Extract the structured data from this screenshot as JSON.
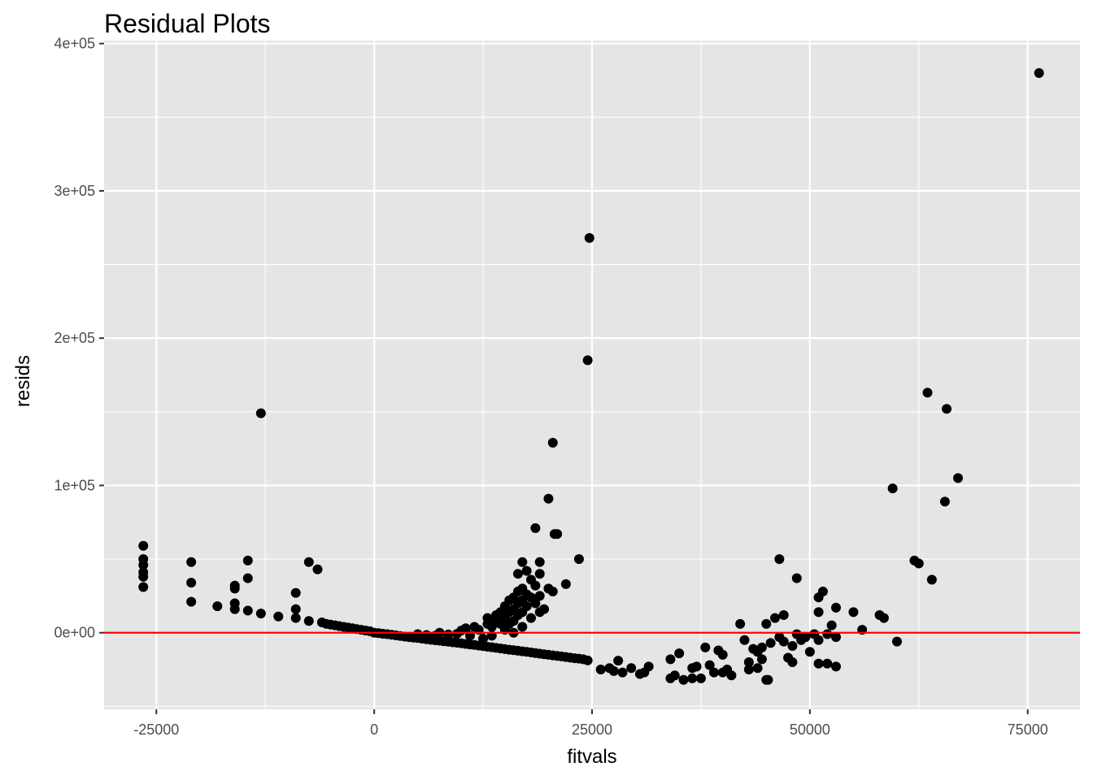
{
  "chart_data": {
    "type": "scatter",
    "title": "Residual Plots",
    "xlabel": "fitvals",
    "ylabel": "resids",
    "xlim": [
      -31000,
      81000
    ],
    "ylim": [
      -52000,
      402000
    ],
    "x_ticks": [
      -25000,
      0,
      25000,
      50000,
      75000
    ],
    "x_tick_labels": [
      "-25000",
      "0",
      "25000",
      "50000",
      "75000"
    ],
    "y_ticks": [
      0,
      100000,
      200000,
      300000,
      400000
    ],
    "y_tick_labels": [
      "0e+00",
      "1e+05",
      "2e+05",
      "3e+05",
      "4e+05"
    ],
    "reference_line": {
      "y": 0,
      "color": "#ff0000"
    },
    "grid": true,
    "legend": "none",
    "colors": {
      "panel": "#e5e5e5",
      "grid": "#ffffff",
      "point": "#000000",
      "ref_line": "#ff0000"
    },
    "points": [
      [
        -26500,
        59000
      ],
      [
        -26500,
        50000
      ],
      [
        -26500,
        46000
      ],
      [
        -26500,
        41000
      ],
      [
        -26500,
        38000
      ],
      [
        -26500,
        31000
      ],
      [
        -21000,
        48000
      ],
      [
        -21000,
        34000
      ],
      [
        -21000,
        21000
      ],
      [
        -18000,
        18000
      ],
      [
        -16000,
        32000
      ],
      [
        -16000,
        30000
      ],
      [
        -16000,
        20000
      ],
      [
        -16000,
        16000
      ],
      [
        -14500,
        49000
      ],
      [
        -14500,
        37000
      ],
      [
        -14500,
        15000
      ],
      [
        -13000,
        149000
      ],
      [
        -13000,
        13000
      ],
      [
        -11000,
        11000
      ],
      [
        -9000,
        27000
      ],
      [
        -9000,
        16000
      ],
      [
        -9000,
        10000
      ],
      [
        -7500,
        48000
      ],
      [
        -7500,
        8000
      ],
      [
        -6500,
        43000
      ],
      [
        -6000,
        7000
      ],
      [
        -5500,
        6000
      ],
      [
        -5000,
        5500
      ],
      [
        -4500,
        5000
      ],
      [
        -4000,
        4500
      ],
      [
        -3500,
        4000
      ],
      [
        -3000,
        3500
      ],
      [
        -2500,
        3000
      ],
      [
        -2000,
        2500
      ],
      [
        -1500,
        2000
      ],
      [
        -1000,
        1500
      ],
      [
        -500,
        1000
      ],
      [
        0,
        0
      ],
      [
        500,
        -300
      ],
      [
        1000,
        -700
      ],
      [
        1500,
        -1000
      ],
      [
        2000,
        -1400
      ],
      [
        2500,
        -1800
      ],
      [
        3000,
        -2200
      ],
      [
        3500,
        -2600
      ],
      [
        4000,
        -3000
      ],
      [
        4500,
        -3300
      ],
      [
        5000,
        -3600
      ],
      [
        5500,
        -4000
      ],
      [
        6000,
        -4400
      ],
      [
        6500,
        -4800
      ],
      [
        7000,
        -5100
      ],
      [
        7500,
        -5400
      ],
      [
        8000,
        -5800
      ],
      [
        8500,
        -6100
      ],
      [
        9000,
        -6500
      ],
      [
        9500,
        -6800
      ],
      [
        10000,
        -7200
      ],
      [
        10500,
        -7600
      ],
      [
        11000,
        -8000
      ],
      [
        11500,
        -8300
      ],
      [
        12000,
        -8700
      ],
      [
        12500,
        -9100
      ],
      [
        13000,
        -9500
      ],
      [
        13500,
        -9900
      ],
      [
        14000,
        -10300
      ],
      [
        14500,
        -10700
      ],
      [
        15000,
        -11100
      ],
      [
        15500,
        -11500
      ],
      [
        16000,
        -11900
      ],
      [
        16500,
        -12200
      ],
      [
        17000,
        -12600
      ],
      [
        17500,
        -13000
      ],
      [
        18000,
        -13400
      ],
      [
        18500,
        -13800
      ],
      [
        19000,
        -14200
      ],
      [
        19500,
        -14600
      ],
      [
        20000,
        -15000
      ],
      [
        20500,
        -15400
      ],
      [
        21000,
        -15700
      ],
      [
        21500,
        -16100
      ],
      [
        22000,
        -16500
      ],
      [
        22500,
        -16900
      ],
      [
        23000,
        -17300
      ],
      [
        23500,
        -17600
      ],
      [
        24000,
        -18000
      ],
      [
        24500,
        -18800
      ],
      [
        5000,
        -1000
      ],
      [
        6000,
        -1500
      ],
      [
        7000,
        -2000
      ],
      [
        7500,
        0
      ],
      [
        8500,
        -1200
      ],
      [
        9500,
        -800
      ],
      [
        10000,
        1500
      ],
      [
        10500,
        3000
      ],
      [
        11000,
        -2000
      ],
      [
        11500,
        4000
      ],
      [
        12000,
        2000
      ],
      [
        12500,
        -4000
      ],
      [
        13000,
        6000
      ],
      [
        13000,
        10000
      ],
      [
        13500,
        4000
      ],
      [
        13500,
        -2000
      ],
      [
        14000,
        12000
      ],
      [
        14000,
        8000
      ],
      [
        14500,
        14000
      ],
      [
        14500,
        6000
      ],
      [
        15000,
        18000
      ],
      [
        15000,
        10000
      ],
      [
        15000,
        2000
      ],
      [
        15500,
        22000
      ],
      [
        15500,
        14000
      ],
      [
        15500,
        6000
      ],
      [
        16000,
        24000
      ],
      [
        16000,
        16000
      ],
      [
        16000,
        8000
      ],
      [
        16000,
        0
      ],
      [
        16500,
        40000
      ],
      [
        16500,
        28000
      ],
      [
        16500,
        20000
      ],
      [
        16500,
        12000
      ],
      [
        17000,
        48000
      ],
      [
        17000,
        30000
      ],
      [
        17000,
        22000
      ],
      [
        17000,
        14000
      ],
      [
        17000,
        4000
      ],
      [
        17500,
        42000
      ],
      [
        17500,
        26000
      ],
      [
        17500,
        18000
      ],
      [
        18000,
        36000
      ],
      [
        18000,
        24000
      ],
      [
        18000,
        10000
      ],
      [
        18500,
        71000
      ],
      [
        18500,
        32000
      ],
      [
        18500,
        20000
      ],
      [
        19000,
        48000
      ],
      [
        19000,
        40000
      ],
      [
        19000,
        25000
      ],
      [
        19000,
        14000
      ],
      [
        19500,
        16000
      ],
      [
        20000,
        91000
      ],
      [
        20000,
        30000
      ],
      [
        20500,
        129000
      ],
      [
        20500,
        28000
      ],
      [
        20700,
        67000
      ],
      [
        21000,
        67000
      ],
      [
        22000,
        33000
      ],
      [
        23500,
        50000
      ],
      [
        24500,
        185000
      ],
      [
        24700,
        268000
      ],
      [
        26000,
        -25000
      ],
      [
        27000,
        -24000
      ],
      [
        27500,
        -26000
      ],
      [
        28000,
        -19000
      ],
      [
        28500,
        -27000
      ],
      [
        29500,
        -24000
      ],
      [
        30500,
        -28000
      ],
      [
        31000,
        -27000
      ],
      [
        31500,
        -23000
      ],
      [
        34000,
        -31000
      ],
      [
        34000,
        -18000
      ],
      [
        34500,
        -29000
      ],
      [
        35000,
        -14000
      ],
      [
        35500,
        -32000
      ],
      [
        36500,
        -31000
      ],
      [
        36500,
        -24000
      ],
      [
        37000,
        -23000
      ],
      [
        37500,
        -31000
      ],
      [
        38000,
        -10000
      ],
      [
        38500,
        -22000
      ],
      [
        39000,
        -27000
      ],
      [
        39500,
        -12000
      ],
      [
        40000,
        -15000
      ],
      [
        40000,
        -27000
      ],
      [
        40500,
        -25000
      ],
      [
        41000,
        -29000
      ],
      [
        42000,
        6000
      ],
      [
        42500,
        -5000
      ],
      [
        43000,
        -20000
      ],
      [
        43000,
        -25000
      ],
      [
        43500,
        -11000
      ],
      [
        44000,
        -13000
      ],
      [
        44000,
        -24000
      ],
      [
        44500,
        -18000
      ],
      [
        44500,
        -10000
      ],
      [
        45000,
        6000
      ],
      [
        45000,
        -32000
      ],
      [
        45200,
        -32000
      ],
      [
        45500,
        -7000
      ],
      [
        46000,
        10000
      ],
      [
        46500,
        50000
      ],
      [
        46500,
        -3000
      ],
      [
        47000,
        12000
      ],
      [
        47000,
        -6000
      ],
      [
        47500,
        -17000
      ],
      [
        48000,
        -20000
      ],
      [
        48000,
        -9000
      ],
      [
        48500,
        37000
      ],
      [
        48500,
        -1000
      ],
      [
        49000,
        -5000
      ],
      [
        49500,
        -3000
      ],
      [
        50000,
        -13000
      ],
      [
        50500,
        -1000
      ],
      [
        51000,
        24000
      ],
      [
        51000,
        14000
      ],
      [
        51000,
        -5000
      ],
      [
        51000,
        -21000
      ],
      [
        51500,
        28000
      ],
      [
        52000,
        -1000
      ],
      [
        52000,
        -21000
      ],
      [
        52500,
        5000
      ],
      [
        53000,
        17000
      ],
      [
        53000,
        -23000
      ],
      [
        53000,
        -3000
      ],
      [
        55000,
        14000
      ],
      [
        56000,
        2000
      ],
      [
        58000,
        12000
      ],
      [
        58500,
        10000
      ],
      [
        59500,
        98000
      ],
      [
        60000,
        -6000
      ],
      [
        62000,
        49000
      ],
      [
        62500,
        47000
      ],
      [
        63500,
        163000
      ],
      [
        64000,
        36000
      ],
      [
        65500,
        89000
      ],
      [
        65700,
        152000
      ],
      [
        67000,
        105000
      ],
      [
        76300,
        380000
      ]
    ]
  }
}
